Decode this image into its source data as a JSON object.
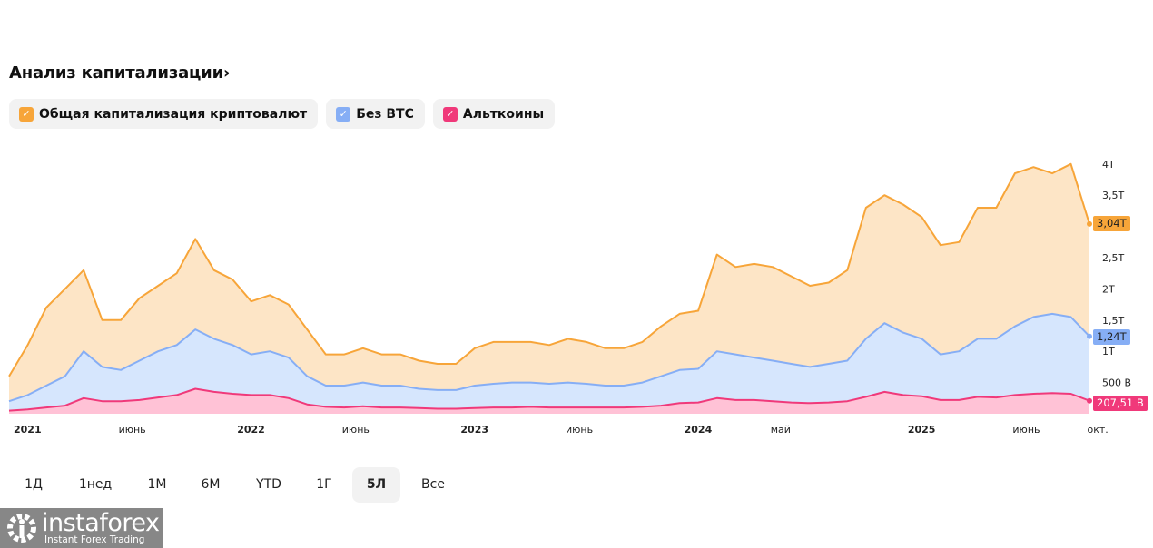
{
  "header": {
    "title": "Анализ капитализации",
    "chevron": "›"
  },
  "legend": [
    {
      "label": "Общая капитализация криптовалют",
      "color": "#f7a539",
      "checked": true
    },
    {
      "label": "Без BTC",
      "color": "#86aef5",
      "checked": true
    },
    {
      "label": "Альткоины",
      "color": "#f0397a",
      "checked": true
    }
  ],
  "ranges": {
    "items": [
      "1Д",
      "1нед",
      "1M",
      "6M",
      "YTD",
      "1Г",
      "5Л",
      "Все"
    ],
    "active": "5Л"
  },
  "logo": {
    "name": "instaforex",
    "tagline": "Instant Forex Trading"
  },
  "chart_data": {
    "type": "area",
    "title": "",
    "xlabel": "",
    "ylabel": "",
    "x_start": "2021-01",
    "x_end": "2025-11",
    "x_step": "month",
    "ylim": [
      0,
      4.1
    ],
    "y_unit": "trillion USD",
    "yticks": [
      {
        "value": 0.5,
        "label": "500 B"
      },
      {
        "value": 1,
        "label": "1T"
      },
      {
        "value": 1.5,
        "label": "1,5T"
      },
      {
        "value": 2,
        "label": "2T"
      },
      {
        "value": 2.5,
        "label": "2,5T"
      },
      {
        "value": 3.5,
        "label": "3,5T"
      },
      {
        "value": 4,
        "label": "4T"
      }
    ],
    "xticks": [
      {
        "date": "2021-01",
        "label": "2021",
        "year": true
      },
      {
        "date": "2021-06",
        "label": "июнь",
        "year": false
      },
      {
        "date": "2022-01",
        "label": "2022",
        "year": true
      },
      {
        "date": "2022-06",
        "label": "июнь",
        "year": false
      },
      {
        "date": "2023-01",
        "label": "2023",
        "year": true
      },
      {
        "date": "2023-06",
        "label": "июнь",
        "year": false
      },
      {
        "date": "2024-01",
        "label": "2024",
        "year": true
      },
      {
        "date": "2024-05",
        "label": "май",
        "year": false
      },
      {
        "date": "2025-01",
        "label": "2025",
        "year": true
      },
      {
        "date": "2025-06",
        "label": "июнь",
        "year": false
      },
      {
        "date": "2025-10",
        "label": "окт.",
        "year": false
      }
    ],
    "grid": false,
    "legend_position": "top-left",
    "series": [
      {
        "name": "Общая капитализация криптовалют",
        "line": "#f7a539",
        "fill": "#fde5c6",
        "last_label": "3,04T",
        "values": [
          0.6,
          1.1,
          1.7,
          2.0,
          2.3,
          1.5,
          1.5,
          1.85,
          2.05,
          2.25,
          2.8,
          2.3,
          2.15,
          1.8,
          1.9,
          1.75,
          1.35,
          0.95,
          0.95,
          1.05,
          0.95,
          0.95,
          0.85,
          0.8,
          0.8,
          1.05,
          1.15,
          1.15,
          1.15,
          1.1,
          1.2,
          1.15,
          1.05,
          1.05,
          1.15,
          1.4,
          1.6,
          1.65,
          2.55,
          2.35,
          2.4,
          2.35,
          2.2,
          2.05,
          2.1,
          2.3,
          3.3,
          3.5,
          3.35,
          3.15,
          2.7,
          2.75,
          3.3,
          3.3,
          3.85,
          3.95,
          3.85,
          4.0,
          3.04
        ]
      },
      {
        "name": "Без BTC",
        "line": "#86aef5",
        "fill": "#d6e6fd",
        "last_label": "1,24T",
        "values": [
          0.2,
          0.3,
          0.45,
          0.6,
          1.0,
          0.75,
          0.7,
          0.85,
          1.0,
          1.1,
          1.35,
          1.2,
          1.1,
          0.95,
          1.0,
          0.9,
          0.6,
          0.45,
          0.45,
          0.5,
          0.45,
          0.45,
          0.4,
          0.38,
          0.38,
          0.45,
          0.48,
          0.5,
          0.5,
          0.48,
          0.5,
          0.48,
          0.45,
          0.45,
          0.5,
          0.6,
          0.7,
          0.72,
          1.0,
          0.95,
          0.9,
          0.85,
          0.8,
          0.75,
          0.8,
          0.85,
          1.2,
          1.45,
          1.3,
          1.2,
          0.95,
          1.0,
          1.2,
          1.2,
          1.4,
          1.55,
          1.6,
          1.55,
          1.24
        ]
      },
      {
        "name": "Альткоины",
        "line": "#f0397a",
        "fill": "#ffc2d6",
        "last_label": "207,51 B",
        "values": [
          0.05,
          0.07,
          0.1,
          0.13,
          0.25,
          0.2,
          0.2,
          0.22,
          0.26,
          0.3,
          0.4,
          0.35,
          0.32,
          0.3,
          0.3,
          0.25,
          0.15,
          0.11,
          0.1,
          0.12,
          0.1,
          0.1,
          0.09,
          0.08,
          0.08,
          0.09,
          0.1,
          0.1,
          0.11,
          0.1,
          0.1,
          0.1,
          0.1,
          0.1,
          0.11,
          0.13,
          0.17,
          0.18,
          0.25,
          0.22,
          0.22,
          0.2,
          0.18,
          0.17,
          0.18,
          0.2,
          0.27,
          0.35,
          0.3,
          0.28,
          0.22,
          0.22,
          0.27,
          0.26,
          0.3,
          0.32,
          0.33,
          0.32,
          0.2075
        ]
      }
    ]
  }
}
